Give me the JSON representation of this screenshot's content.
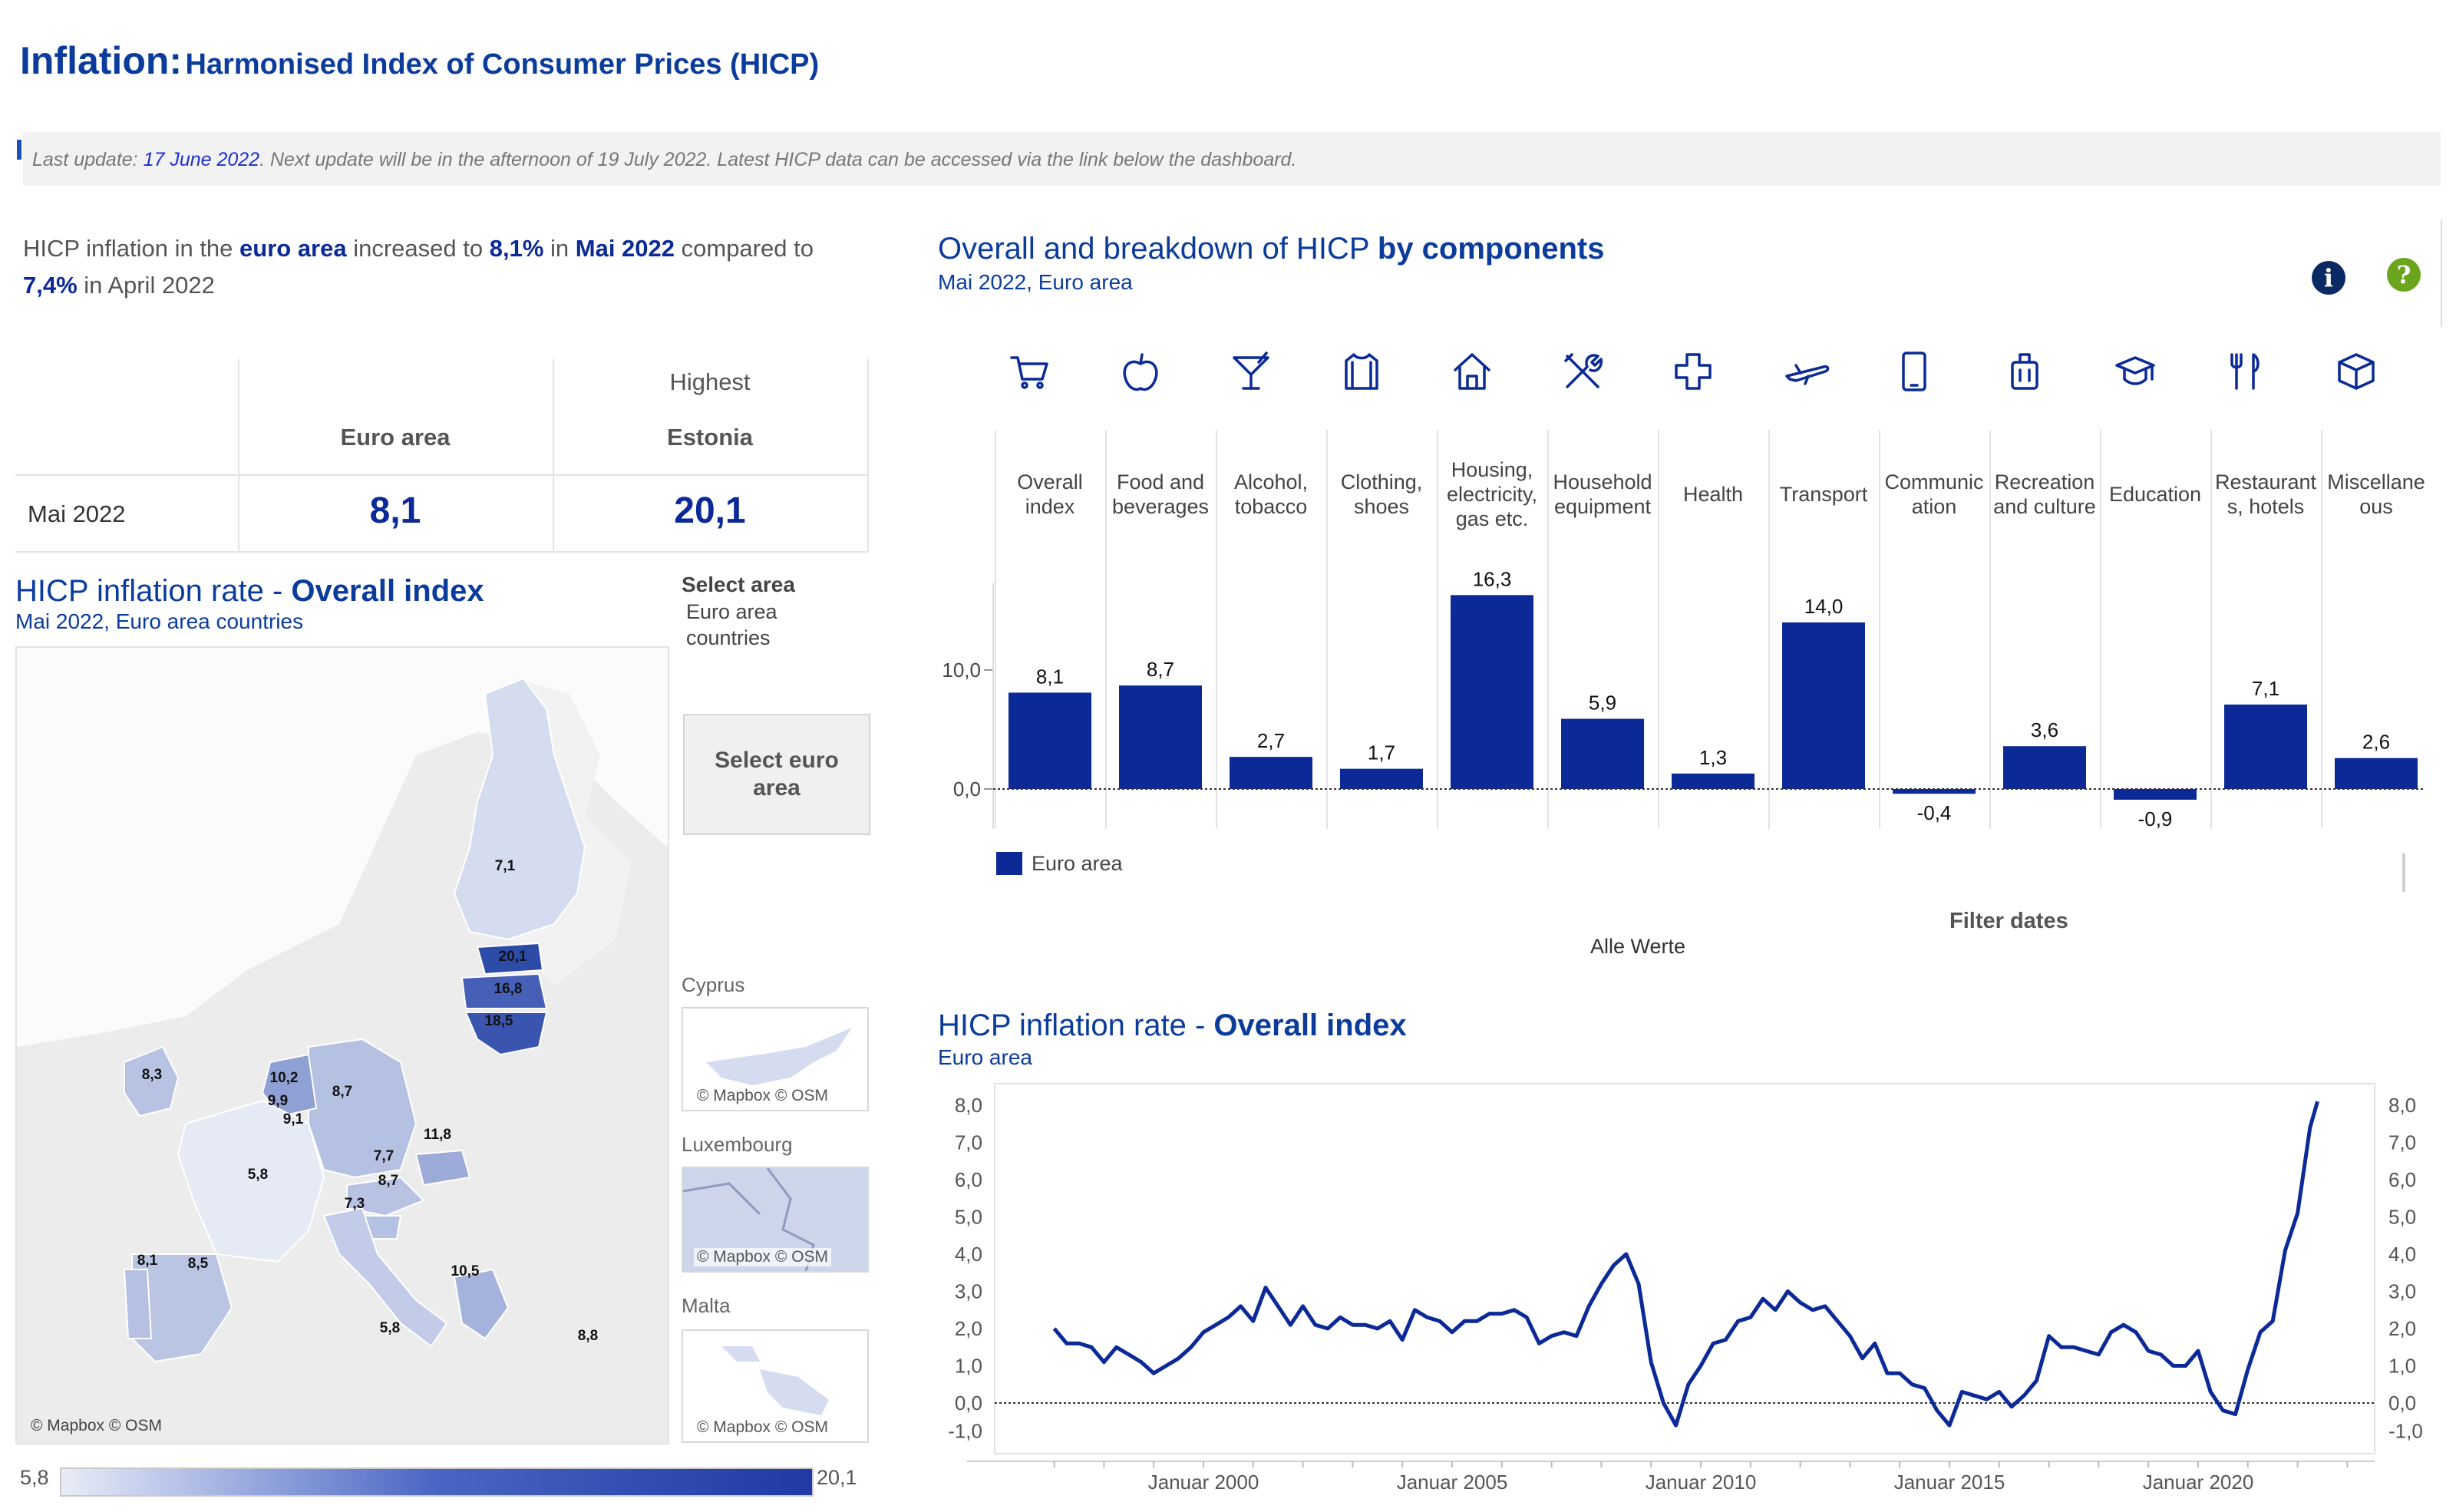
{
  "header": {
    "title_main": "Inflation:",
    "title_sub": "Harmonised Index of Consumer Prices (HICP)"
  },
  "update": {
    "prefix": "Last update: ",
    "date": "17 June 2022",
    "suffix": ". Next update will be in the afternoon of 19 July 2022. Latest HICP data can be accessed via the link below the dashboard."
  },
  "summary": {
    "p1": "HICP inflation in the ",
    "area": "euro area",
    "p2": "  increased to ",
    "rate": "8,1%",
    "p3": " in ",
    "month": "Mai 2022",
    "p4": " compared to ",
    "prev_rate": "7,4%",
    "p5": " in April 2022"
  },
  "kpi": {
    "highest_label": "Highest",
    "col1": "Euro area",
    "col2": "Estonia",
    "row_label": "Mai 2022",
    "val1": "8,1",
    "val2": "20,1"
  },
  "map": {
    "title_plain": "HICP inflation rate - ",
    "title_bold": "Overall index",
    "subtitle": "Mai 2022, Euro area countries",
    "credit": "© Mapbox © OSM",
    "select_area_label": "Select area",
    "select_area_value": "Euro area countries",
    "select_button": "Select euro area",
    "legend_min": "5,8",
    "legend_max": "20,1",
    "insets": [
      "Cyprus",
      "Luxembourg",
      "Malta"
    ],
    "country_values": [
      {
        "country": "Finland",
        "value": "7,1"
      },
      {
        "country": "Estonia",
        "value": "20,1"
      },
      {
        "country": "Latvia",
        "value": "16,8"
      },
      {
        "country": "Lithuania",
        "value": "18,5"
      },
      {
        "country": "Ireland",
        "value": "8,3"
      },
      {
        "country": "Netherlands",
        "value": "10,2"
      },
      {
        "country": "Belgium",
        "value": "9,9"
      },
      {
        "country": "Luxembourg",
        "value": "9,1"
      },
      {
        "country": "Germany",
        "value": "8,7"
      },
      {
        "country": "France",
        "value": "5,8"
      },
      {
        "country": "Slovakia",
        "value": "11,8"
      },
      {
        "country": "Austria",
        "value": "7,7"
      },
      {
        "country": "Slovenia",
        "value": "8,7"
      },
      {
        "country": "Italy",
        "value": "7,3"
      },
      {
        "country": "Portugal",
        "value": "8,1"
      },
      {
        "country": "Spain",
        "value": "8,5"
      },
      {
        "country": "Greece",
        "value": "10,5"
      },
      {
        "country": "Malta",
        "value": "5,8"
      },
      {
        "country": "Cyprus",
        "value": "8,8"
      }
    ]
  },
  "components": {
    "title_plain": "Overall and breakdown of HICP ",
    "title_bold": "by components",
    "subtitle": "Mai 2022, Euro area",
    "legend": "Euro area",
    "filter_label": "Filter dates",
    "filter_value": "Alle Werte",
    "colors": {
      "bar": "#0b2a97",
      "info": "#0b2a64",
      "help": "#6aa51d"
    },
    "icons": [
      "cart-icon",
      "apple-icon",
      "cocktail-icon",
      "shirt-icon",
      "house-icon",
      "tools-icon",
      "cross-icon",
      "plane-icon",
      "phone-icon",
      "luggage-icon",
      "graduation-cap-icon",
      "cutlery-icon",
      "box-icon"
    ]
  },
  "line": {
    "title_plain": "HICP inflation rate - ",
    "title_bold": "Overall index",
    "subtitle": "Euro area"
  },
  "chart_data": [
    {
      "type": "bar",
      "categories": [
        [
          "Overall",
          "index"
        ],
        [
          "Food and",
          "beverages"
        ],
        [
          "Alcohol,",
          "tobacco"
        ],
        [
          "Clothing,",
          "shoes"
        ],
        [
          "Housing,",
          "electricity,",
          "gas etc."
        ],
        [
          "Household",
          "equipment"
        ],
        [
          "Health"
        ],
        [
          "Transport"
        ],
        [
          "Communic",
          "ation"
        ],
        [
          "Recreation",
          "and culture"
        ],
        [
          "Education"
        ],
        [
          "Restaurant",
          "s, hotels"
        ],
        [
          "Miscellane",
          "ous"
        ]
      ],
      "series": [
        {
          "name": "Euro area",
          "values": [
            8.1,
            8.7,
            2.7,
            1.7,
            16.3,
            5.9,
            1.3,
            14.0,
            -0.4,
            3.6,
            -0.9,
            7.1,
            2.6
          ]
        }
      ],
      "value_labels": [
        "8,1",
        "8,7",
        "2,7",
        "1,7",
        "16,3",
        "5,9",
        "1,3",
        "14,0",
        "-0,4",
        "3,6",
        "-0,9",
        "7,1",
        "2,6"
      ],
      "yticks": [
        "0,0",
        "10,0"
      ],
      "ylim": [
        -4,
        20
      ]
    },
    {
      "type": "line",
      "x_tick_labels": [
        "Januar 2000",
        "Januar 2005",
        "Januar 2010",
        "Januar 2015",
        "Januar 2020"
      ],
      "x_tick_years": [
        2000,
        2005,
        2010,
        2015,
        2020
      ],
      "y_tick_labels": [
        "8,0",
        "7,0",
        "6,0",
        "5,0",
        "4,0",
        "3,0",
        "2,0",
        "1,0",
        "0,0",
        "-1,0"
      ],
      "ylim": [
        -1,
        8
      ],
      "series": [
        {
          "name": "Euro area",
          "points": [
            [
              1997.0,
              2.0
            ],
            [
              1997.25,
              1.6
            ],
            [
              1997.5,
              1.6
            ],
            [
              1997.75,
              1.5
            ],
            [
              1998.0,
              1.1
            ],
            [
              1998.25,
              1.5
            ],
            [
              1998.5,
              1.3
            ],
            [
              1998.75,
              1.1
            ],
            [
              1999.0,
              0.8
            ],
            [
              1999.25,
              1.0
            ],
            [
              1999.5,
              1.2
            ],
            [
              1999.75,
              1.5
            ],
            [
              2000.0,
              1.9
            ],
            [
              2000.25,
              2.1
            ],
            [
              2000.5,
              2.3
            ],
            [
              2000.75,
              2.6
            ],
            [
              2001.0,
              2.2
            ],
            [
              2001.25,
              3.1
            ],
            [
              2001.5,
              2.6
            ],
            [
              2001.75,
              2.1
            ],
            [
              2002.0,
              2.6
            ],
            [
              2002.25,
              2.1
            ],
            [
              2002.5,
              2.0
            ],
            [
              2002.75,
              2.3
            ],
            [
              2003.0,
              2.1
            ],
            [
              2003.25,
              2.1
            ],
            [
              2003.5,
              2.0
            ],
            [
              2003.75,
              2.2
            ],
            [
              2004.0,
              1.7
            ],
            [
              2004.25,
              2.5
            ],
            [
              2004.5,
              2.3
            ],
            [
              2004.75,
              2.2
            ],
            [
              2005.0,
              1.9
            ],
            [
              2005.25,
              2.2
            ],
            [
              2005.5,
              2.2
            ],
            [
              2005.75,
              2.4
            ],
            [
              2006.0,
              2.4
            ],
            [
              2006.25,
              2.5
            ],
            [
              2006.5,
              2.3
            ],
            [
              2006.75,
              1.6
            ],
            [
              2007.0,
              1.8
            ],
            [
              2007.25,
              1.9
            ],
            [
              2007.5,
              1.8
            ],
            [
              2007.75,
              2.6
            ],
            [
              2008.0,
              3.2
            ],
            [
              2008.25,
              3.7
            ],
            [
              2008.5,
              4.0
            ],
            [
              2008.75,
              3.2
            ],
            [
              2009.0,
              1.1
            ],
            [
              2009.25,
              0.0
            ],
            [
              2009.5,
              -0.6
            ],
            [
              2009.75,
              0.5
            ],
            [
              2010.0,
              1.0
            ],
            [
              2010.25,
              1.6
            ],
            [
              2010.5,
              1.7
            ],
            [
              2010.75,
              2.2
            ],
            [
              2011.0,
              2.3
            ],
            [
              2011.25,
              2.8
            ],
            [
              2011.5,
              2.5
            ],
            [
              2011.75,
              3.0
            ],
            [
              2012.0,
              2.7
            ],
            [
              2012.25,
              2.5
            ],
            [
              2012.5,
              2.6
            ],
            [
              2012.75,
              2.2
            ],
            [
              2013.0,
              1.8
            ],
            [
              2013.25,
              1.2
            ],
            [
              2013.5,
              1.6
            ],
            [
              2013.75,
              0.8
            ],
            [
              2014.0,
              0.8
            ],
            [
              2014.25,
              0.5
            ],
            [
              2014.5,
              0.4
            ],
            [
              2014.75,
              -0.2
            ],
            [
              2015.0,
              -0.6
            ],
            [
              2015.25,
              0.3
            ],
            [
              2015.5,
              0.2
            ],
            [
              2015.75,
              0.1
            ],
            [
              2016.0,
              0.3
            ],
            [
              2016.25,
              -0.1
            ],
            [
              2016.5,
              0.2
            ],
            [
              2016.75,
              0.6
            ],
            [
              2017.0,
              1.8
            ],
            [
              2017.25,
              1.5
            ],
            [
              2017.5,
              1.5
            ],
            [
              2017.75,
              1.4
            ],
            [
              2018.0,
              1.3
            ],
            [
              2018.25,
              1.9
            ],
            [
              2018.5,
              2.1
            ],
            [
              2018.75,
              1.9
            ],
            [
              2019.0,
              1.4
            ],
            [
              2019.25,
              1.3
            ],
            [
              2019.5,
              1.0
            ],
            [
              2019.75,
              1.0
            ],
            [
              2020.0,
              1.4
            ],
            [
              2020.25,
              0.3
            ],
            [
              2020.5,
              -0.2
            ],
            [
              2020.75,
              -0.3
            ],
            [
              2021.0,
              0.9
            ],
            [
              2021.25,
              1.9
            ],
            [
              2021.5,
              2.2
            ],
            [
              2021.75,
              4.1
            ],
            [
              2022.0,
              5.1
            ],
            [
              2022.25,
              7.4
            ],
            [
              2022.4,
              8.1
            ]
          ]
        }
      ]
    }
  ]
}
